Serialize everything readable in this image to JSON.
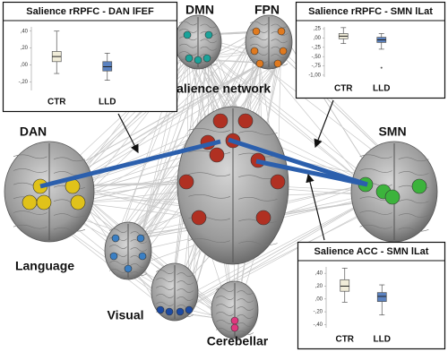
{
  "networks": [
    {
      "label": "DMN"
    },
    {
      "label": "FPN"
    },
    {
      "label": "Salience network"
    },
    {
      "label": "DAN"
    },
    {
      "label": "SMN"
    },
    {
      "label": "Language"
    },
    {
      "label": "Visual"
    },
    {
      "label": "Cerebellar"
    }
  ],
  "insets": [
    {
      "title": "Salience rRPFC - DAN lFEF",
      "ylim": [
        -0.3,
        0.45
      ],
      "yticks": [
        {
          "value": 0.4,
          "label": ",40"
        },
        {
          "value": 0.2,
          "label": ",20"
        },
        {
          "value": 0,
          "label": ",00"
        },
        {
          "value": -0.2,
          "label": "-,20"
        }
      ],
      "groups": [
        {
          "name": "CTR",
          "color": "#f1edd9",
          "min": -0.1,
          "q1": 0.04,
          "median": 0.1,
          "q3": 0.16,
          "max": 0.4
        },
        {
          "name": "LLD",
          "color": "#5b82c0",
          "min": -0.18,
          "q1": -0.07,
          "median": -0.02,
          "q3": 0.04,
          "max": 0.14
        }
      ]
    },
    {
      "title": "Salience rRPFC - SMN lLat",
      "ylim": [
        -1.05,
        0.3
      ],
      "yticks": [
        {
          "value": 0.25,
          "label": ",25"
        },
        {
          "value": 0,
          "label": ",00"
        },
        {
          "value": -0.25,
          "label": "-,25"
        },
        {
          "value": -0.5,
          "label": "-,50"
        },
        {
          "value": -0.75,
          "label": "-,75"
        },
        {
          "value": -1,
          "label": "-1,00"
        }
      ],
      "groups": [
        {
          "name": "CTR",
          "color": "#f1edd9",
          "min": -0.15,
          "q1": -0.02,
          "median": 0.05,
          "q3": 0.12,
          "max": 0.28
        },
        {
          "name": "LLD",
          "color": "#5b82c0",
          "min": -0.3,
          "q1": -0.12,
          "median": -0.05,
          "q3": 0.02,
          "max": 0.12,
          "outliers": [
            -0.8
          ]
        }
      ]
    },
    {
      "title": "Salience ACC - SMN lLat",
      "ylim": [
        -0.45,
        0.5
      ],
      "yticks": [
        {
          "value": 0.4,
          "label": ",40"
        },
        {
          "value": 0.2,
          "label": ",20"
        },
        {
          "value": 0,
          "label": ",00"
        },
        {
          "value": -0.2,
          "label": "-,20"
        },
        {
          "value": -0.4,
          "label": "-,40"
        }
      ],
      "groups": [
        {
          "name": "CTR",
          "color": "#f1edd9",
          "min": -0.05,
          "q1": 0.12,
          "median": 0.2,
          "q3": 0.3,
          "max": 0.48
        },
        {
          "name": "LLD",
          "color": "#5b82c0",
          "min": -0.25,
          "q1": -0.04,
          "median": 0.04,
          "q3": 0.1,
          "max": 0.22
        }
      ]
    }
  ]
}
